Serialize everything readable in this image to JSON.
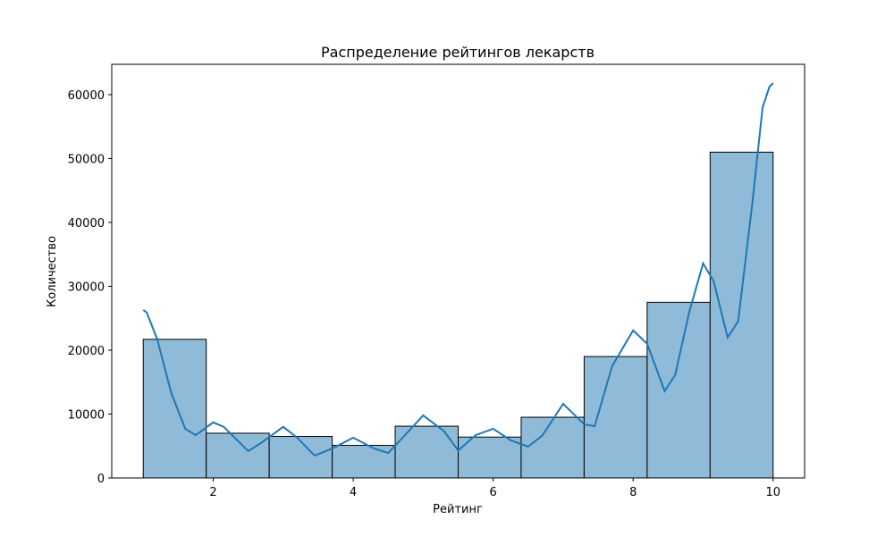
{
  "chart_data": {
    "type": "histogram",
    "title": "Распределение рейтингов лекарств",
    "xlabel": "Рейтинг",
    "ylabel": "Количество",
    "bins": [
      1.0,
      1.9,
      2.8,
      3.7,
      4.6,
      5.5,
      6.4,
      7.3,
      8.2,
      9.1,
      10.0
    ],
    "values": [
      21700,
      7000,
      6500,
      5100,
      8100,
      6400,
      9500,
      19000,
      27500,
      51000
    ],
    "color": "#8fbbd9",
    "edgecolor": "#000000",
    "kde": {
      "color": "#1f77b4",
      "x": [
        1.0,
        1.05,
        1.2,
        1.4,
        1.6,
        1.75,
        2.0,
        2.15,
        2.5,
        2.7,
        3.0,
        3.2,
        3.45,
        3.7,
        4.0,
        4.3,
        4.5,
        4.8,
        5.0,
        5.3,
        5.5,
        5.75,
        6.0,
        6.25,
        6.5,
        6.7,
        7.0,
        7.3,
        7.45,
        7.7,
        8.0,
        8.2,
        8.45,
        8.6,
        8.8,
        9.0,
        9.15,
        9.35,
        9.5,
        9.7,
        9.85,
        9.95,
        10.0
      ],
      "values": [
        26300,
        25900,
        21700,
        13300,
        7700,
        6700,
        8700,
        8000,
        4200,
        5600,
        8000,
        6300,
        3500,
        4600,
        6300,
        4600,
        3900,
        7400,
        9800,
        7300,
        4300,
        6700,
        7700,
        5900,
        4900,
        6600,
        11600,
        8400,
        8100,
        17500,
        23100,
        21000,
        13600,
        16100,
        25900,
        33600,
        30800,
        22000,
        24500,
        42700,
        58000,
        61300,
        61800
      ]
    },
    "xlim": [
      0.55,
      10.45
    ],
    "ylim": [
      0,
      64750
    ],
    "xticks": [
      2,
      4,
      6,
      8,
      10
    ],
    "yticks": [
      0,
      10000,
      20000,
      30000,
      40000,
      50000,
      60000
    ]
  }
}
